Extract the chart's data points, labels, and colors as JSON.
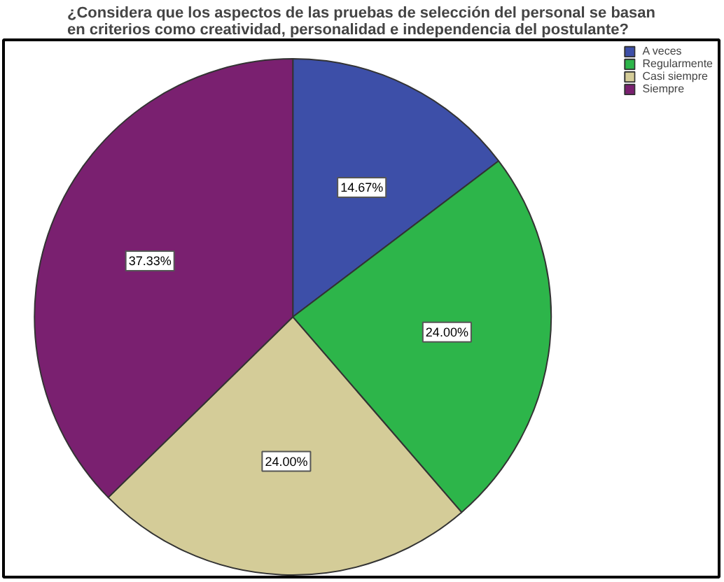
{
  "chart_data": {
    "type": "pie",
    "title": "¿Considera que los aspectos de las pruebas de selección del personal se basan\nen criterios como creatividad, personalidad e independencia del postulante?",
    "categories": [
      "A veces",
      "Regularmente",
      "Casi siempre",
      "Siempre"
    ],
    "values": [
      14.67,
      24.0,
      24.0,
      37.33
    ],
    "colors": [
      "#3d4fa8",
      "#2db54a",
      "#d4cc98",
      "#7a2070"
    ],
    "value_labels": [
      "14.67%",
      "24.00%",
      "24.00%",
      "37.33%"
    ],
    "legend": "top right"
  }
}
